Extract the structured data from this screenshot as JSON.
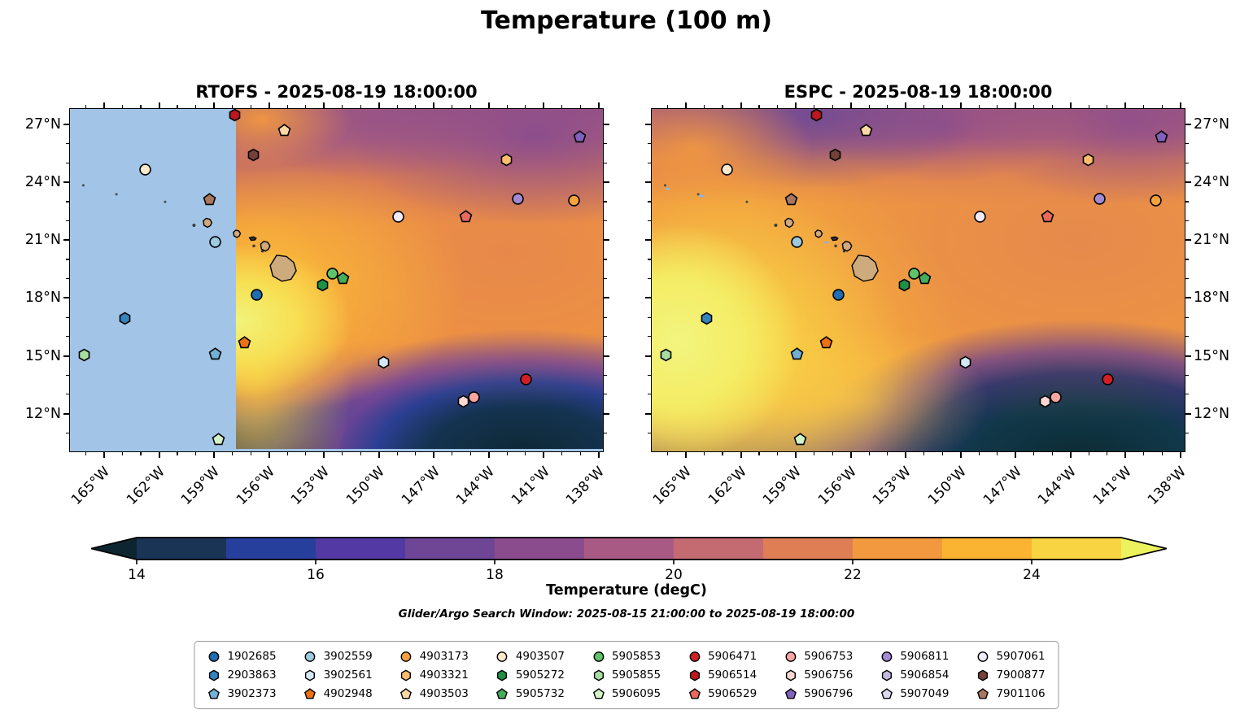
{
  "title": "Temperature (100 m)",
  "panels": [
    {
      "name": "RTOFS",
      "title": "RTOFS - 2025-08-19 18:00:00",
      "y_axis_side": "left",
      "has_mask": true,
      "mask_color": "#a2c4e7",
      "mask_lon_end": -157.8
    },
    {
      "name": "ESPC",
      "title": "ESPC - 2025-08-19 18:00:00",
      "y_axis_side": "right",
      "has_mask": false,
      "mask_color": null,
      "mask_lon_end": null
    }
  ],
  "axes": {
    "lon_range": [
      -166.91,
      -137.73
    ],
    "lat_range": [
      10.0,
      27.85
    ],
    "lon_tick_values": [
      -165,
      -162,
      -159,
      -156,
      -153,
      -150,
      -147,
      -144,
      -141,
      -138
    ],
    "lon_tick_labels": [
      "165°W",
      "162°W",
      "159°W",
      "156°W",
      "153°W",
      "150°W",
      "147°W",
      "144°W",
      "141°W",
      "138°W"
    ],
    "lat_tick_values": [
      27,
      24,
      21,
      18,
      15,
      12
    ],
    "lat_tick_labels": [
      "27°N",
      "24°N",
      "21°N",
      "18°N",
      "15°N",
      "12°N"
    ],
    "minor_tick_interval_deg": 1
  },
  "colorbar": {
    "label": "Temperature (degC)",
    "tick_values": [
      14,
      16,
      18,
      20,
      22,
      24
    ],
    "tick_labels": [
      "14",
      "16",
      "18",
      "20",
      "22",
      "24"
    ],
    "vmin": 14,
    "vmax": 25,
    "segment_step_degC": 1,
    "segment_colors": [
      "#1a3455",
      "#263f9c",
      "#5239a4",
      "#6f4596",
      "#8b4c8e",
      "#a85a84",
      "#c46b72",
      "#df7e55",
      "#f2993f",
      "#fbb431",
      "#f9d442"
    ],
    "under_color": "#0d2530",
    "over_color": "#ebf25e"
  },
  "subtitle": "Glider/Argo Search Window: 2025-08-15 21:00:00 to 2025-08-19 18:00:00",
  "chart_data": {
    "type": "heatmap",
    "title": "Temperature (100 m)",
    "panel_titles": [
      "RTOFS - 2025-08-19 18:00:00",
      "ESPC - 2025-08-19 18:00:00"
    ],
    "colorbar_label": "Temperature (degC)",
    "colorbar_ticks": [
      14,
      16,
      18,
      20,
      22,
      24
    ],
    "value_range_degC": [
      14,
      25
    ],
    "lon_range": [
      -166.91,
      -137.73
    ],
    "lat_range": [
      10.0,
      27.85
    ],
    "field_notes": "Warm (orange/yellow, 23-25 degC) subtropical water around Hawaii; mauve/purple (19-21 degC) band north of 24N; cold (14-16 degC, navy/dark teal) band south of 13N strongest in the southeast corner; RTOFS panel has a flat light-blue no-data mask west of 157.8W; ESPC shows a bright warm (>25 degC) pool in the southwest.",
    "floats": [
      {
        "id": "1902685",
        "shape": "circle",
        "color": "#1f6db2",
        "lon": -156.7,
        "lat": 18.2
      },
      {
        "id": "2903863",
        "shape": "hexagon",
        "color": "#3583bd",
        "lon": -163.9,
        "lat": 17.0
      },
      {
        "id": "3902373",
        "shape": "pentagon",
        "color": "#74afd4",
        "lon": -159.0,
        "lat": 15.15
      },
      {
        "id": "3902559",
        "shape": "circle",
        "color": "#9ecae1",
        "lon": -159.0,
        "lat": 20.95
      },
      {
        "id": "3902561",
        "shape": "hexagon",
        "color": "#d6e8f5",
        "lon": -149.8,
        "lat": 14.7
      },
      {
        "id": "4902948",
        "shape": "pentagon",
        "color": "#ec7014",
        "lon": -157.4,
        "lat": 15.7
      },
      {
        "id": "4903173",
        "shape": "circle",
        "color": "#f9a13c",
        "lon": -139.4,
        "lat": 23.1
      },
      {
        "id": "4903321",
        "shape": "hexagon",
        "color": "#fdbd6d",
        "lon": -143.1,
        "lat": 25.2
      },
      {
        "id": "4903503",
        "shape": "pentagon",
        "color": "#fdd8a7",
        "lon": -155.2,
        "lat": 26.75
      },
      {
        "id": "4903507",
        "shape": "circle",
        "color": "#fdeacc",
        "lon": -162.8,
        "lat": 24.7
      },
      {
        "id": "5905272",
        "shape": "hexagon",
        "color": "#1e9147",
        "lon": -153.1,
        "lat": 18.7
      },
      {
        "id": "5905732",
        "shape": "pentagon",
        "color": "#45ad5a",
        "lon": -152.0,
        "lat": 19.05
      },
      {
        "id": "5905853",
        "shape": "circle",
        "color": "#5ec36a",
        "lon": -152.6,
        "lat": 19.3
      },
      {
        "id": "5905855",
        "shape": "hexagon",
        "color": "#a8dda2",
        "lon": -166.15,
        "lat": 15.1
      },
      {
        "id": "5906095",
        "shape": "pentagon",
        "color": "#d2f2c8",
        "lon": -158.8,
        "lat": 10.7
      },
      {
        "id": "5906471",
        "shape": "circle",
        "color": "#d21f26",
        "lon": -142.0,
        "lat": 13.8
      },
      {
        "id": "5906514",
        "shape": "hexagon",
        "color": "#bd181d",
        "lon": -157.9,
        "lat": 27.55
      },
      {
        "id": "5906529",
        "shape": "pentagon",
        "color": "#e96a5c",
        "lon": -145.3,
        "lat": 22.25
      },
      {
        "id": "5906753",
        "shape": "circle",
        "color": "#f9a5a0",
        "lon": -144.85,
        "lat": 12.9
      },
      {
        "id": "5906756",
        "shape": "hexagon",
        "color": "#fbd7d3",
        "lon": -145.45,
        "lat": 12.7
      },
      {
        "id": "5906796",
        "shape": "pentagon",
        "color": "#8161bd",
        "lon": -139.1,
        "lat": 26.4
      },
      {
        "id": "5906811",
        "shape": "circle",
        "color": "#a28bd4",
        "lon": -142.45,
        "lat": 23.2
      },
      {
        "id": "5906854",
        "shape": "hexagon",
        "color": "#c5b8e4",
        "lon": null,
        "lat": null
      },
      {
        "id": "5907049",
        "shape": "pentagon",
        "color": "#ded8f0",
        "lon": null,
        "lat": null
      },
      {
        "id": "5907061",
        "shape": "circle",
        "color": "#efebf9",
        "lon": -149.0,
        "lat": 22.25
      },
      {
        "id": "7900877",
        "shape": "hexagon",
        "color": "#744138",
        "lon": -156.9,
        "lat": 25.45
      },
      {
        "id": "7901106",
        "shape": "pentagon",
        "color": "#a9765f",
        "lon": -159.3,
        "lat": 23.15
      }
    ],
    "islands": [
      {
        "name": "nw-islet-1",
        "fx": 0.025,
        "fy": 0.222,
        "size": 3,
        "kind": "dot",
        "color": "#4a4a4a"
      },
      {
        "name": "nw-islet-2",
        "fx": 0.087,
        "fy": 0.248,
        "size": 3,
        "kind": "dot",
        "color": "#4a4a4a"
      },
      {
        "name": "nw-islet-3",
        "fx": 0.178,
        "fy": 0.27,
        "size": 3,
        "kind": "dot",
        "color": "#4a4a4a"
      },
      {
        "name": "shoal-1",
        "fx": 0.03,
        "fy": 0.232,
        "size": 6,
        "kind": "dash",
        "color": "#8ab6dd",
        "only": "ESPC"
      },
      {
        "name": "shoal-2",
        "fx": 0.093,
        "fy": 0.253,
        "size": 7,
        "kind": "dash",
        "color": "#8ab6dd",
        "only": "ESPC"
      },
      {
        "name": "niihau",
        "fx": 0.232,
        "fy": 0.338,
        "size": 4,
        "kind": "dot",
        "color": "#3c3c3c"
      },
      {
        "name": "kauai",
        "fx": 0.257,
        "fy": 0.331,
        "size": 11,
        "kind": "blob",
        "color": "#cfa97c"
      },
      {
        "name": "oahu",
        "fx": 0.312,
        "fy": 0.363,
        "size": 9,
        "kind": "blob",
        "color": "#cfa97c"
      },
      {
        "name": "channel-shoal",
        "fx": 0.327,
        "fy": 0.388,
        "size": 6,
        "kind": "dash",
        "color": "#8ab6dd",
        "only": "ESPC"
      },
      {
        "name": "molokai",
        "fx": 0.342,
        "fy": 0.377,
        "size": 8,
        "kind": "dash",
        "color": "#3c3c3c"
      },
      {
        "name": "lanai",
        "fx": 0.344,
        "fy": 0.398,
        "size": 3.5,
        "kind": "dot",
        "color": "#3c3c3c"
      },
      {
        "name": "kahoolawe",
        "fx": 0.36,
        "fy": 0.413,
        "size": 3.5,
        "kind": "dot",
        "color": "#3c3c3c"
      },
      {
        "name": "maui",
        "fx": 0.365,
        "fy": 0.399,
        "size": 12,
        "kind": "blob",
        "color": "#cfa97c"
      },
      {
        "name": "hawaii-big-island",
        "fx": 0.399,
        "fy": 0.463,
        "size": 32,
        "kind": "bigisland",
        "color": "#cdab7d"
      }
    ]
  },
  "legend": {
    "rows": 3,
    "columns": 9,
    "order": "column-major, ascending float id"
  }
}
